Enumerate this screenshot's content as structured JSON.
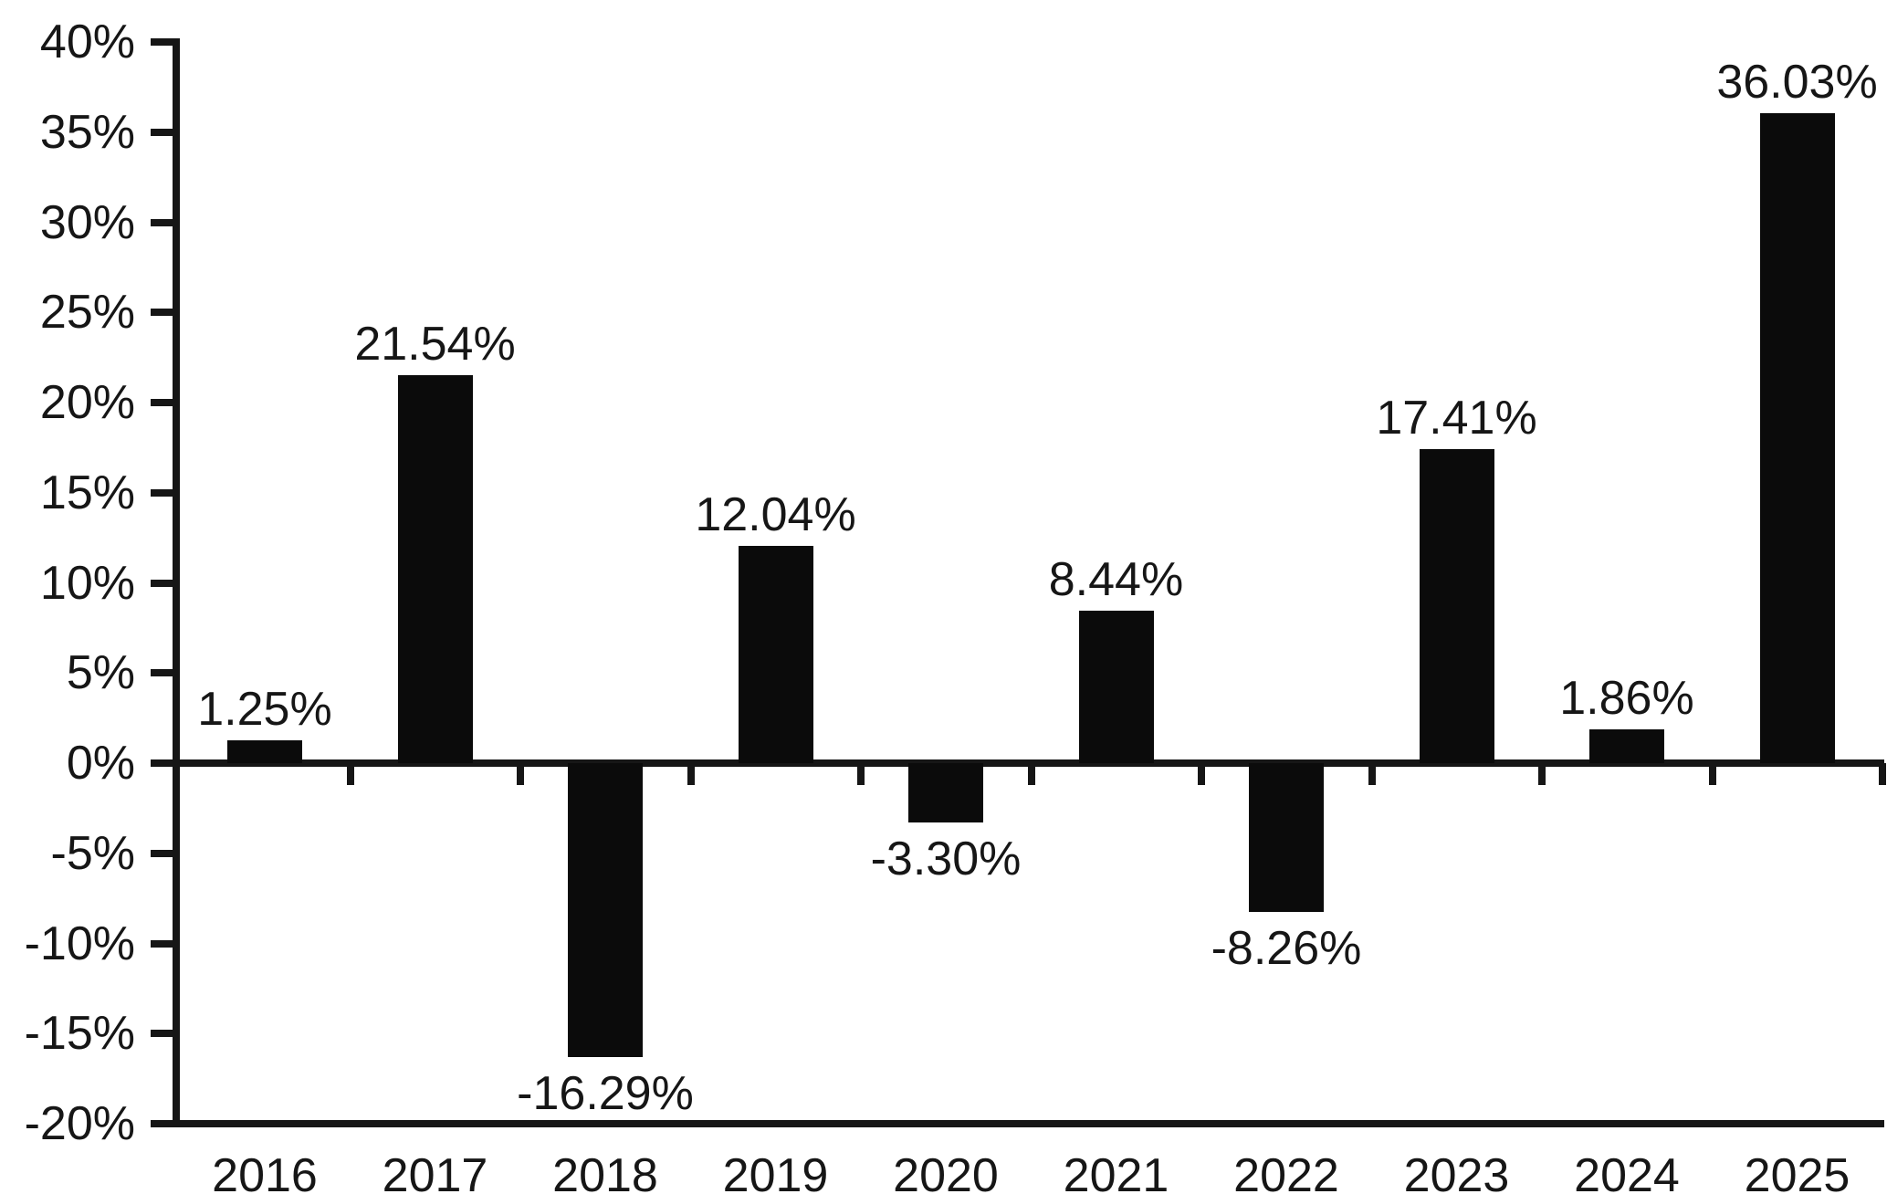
{
  "chart_data": {
    "type": "bar",
    "title": "",
    "xlabel": "",
    "ylabel": "",
    "categories": [
      "2016",
      "2017",
      "2018",
      "2019",
      "2020",
      "2021",
      "2022",
      "2023",
      "2024",
      "2025"
    ],
    "values": [
      1.25,
      21.54,
      -16.29,
      12.04,
      -3.3,
      8.44,
      -8.26,
      17.41,
      1.86,
      36.03
    ],
    "value_labels": [
      "1.25%",
      "21.54%",
      "-16.29%",
      "12.04%",
      "-3.30%",
      "8.44%",
      "-8.26%",
      "17.41%",
      "1.86%",
      "36.03%"
    ],
    "ylim": [
      -20,
      40
    ],
    "ytick_step": 5,
    "ytick_values": [
      40,
      35,
      30,
      25,
      20,
      15,
      10,
      5,
      0,
      -5,
      -10,
      -15,
      -20
    ],
    "ytick_labels": [
      "40%",
      "35%",
      "30%",
      "25%",
      "20%",
      "15%",
      "10%",
      "5%",
      "0%",
      "-5%",
      "-10%",
      "-15%",
      "-20%"
    ],
    "grid": false,
    "legend": null,
    "colors": {
      "bar": "#0b0b0b",
      "axis": "#161616",
      "text": "#161616",
      "background": "#ffffff"
    }
  }
}
